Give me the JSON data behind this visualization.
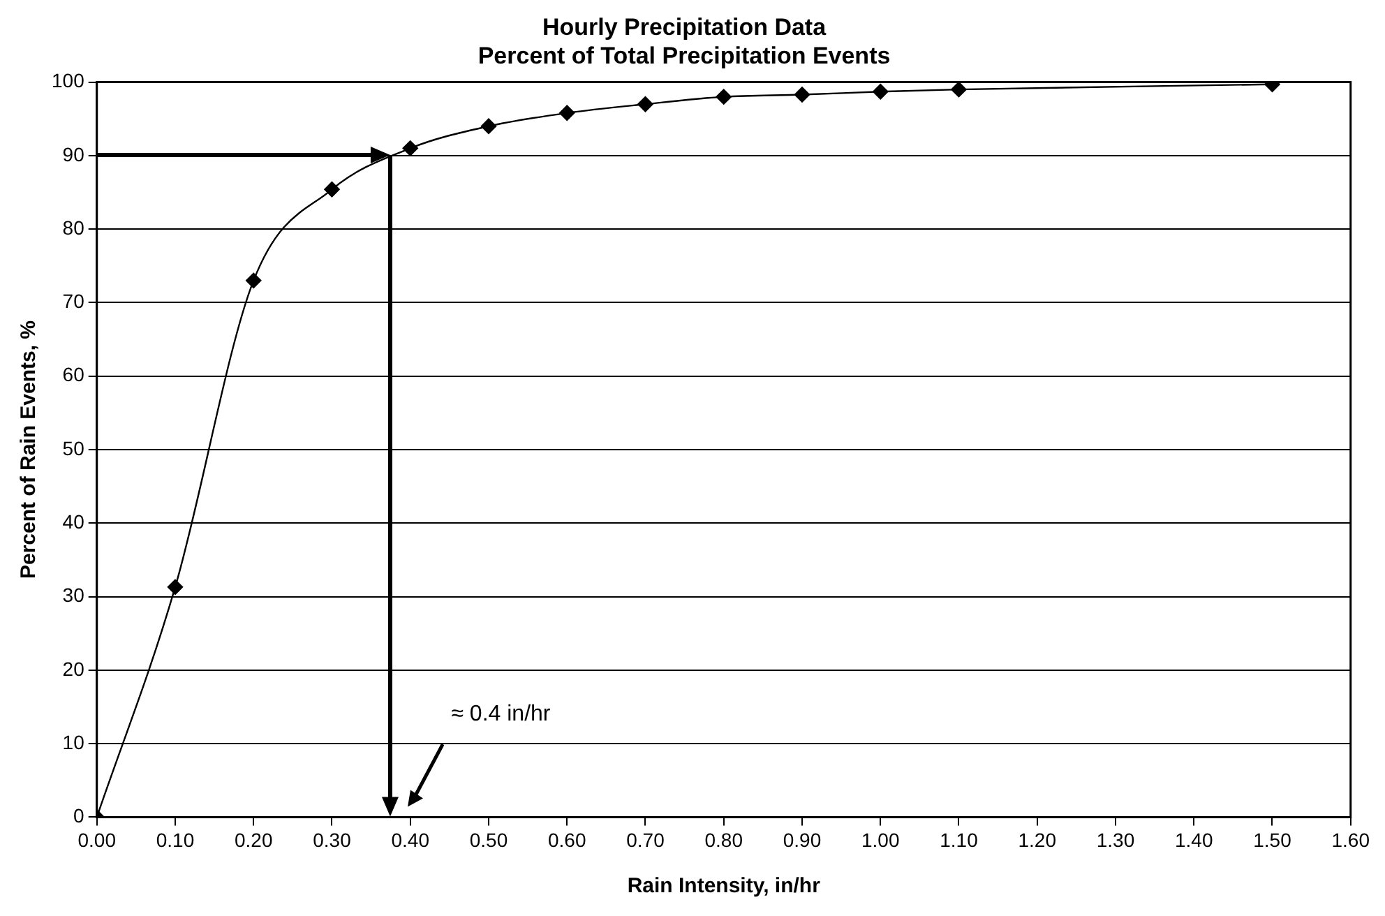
{
  "chart_data": {
    "type": "line",
    "title": "Hourly Precipitation Data",
    "subtitle": "Percent of Total Precipitation Events",
    "xlabel": "Rain Intensity, in/hr",
    "ylabel": "Percent of Rain Events, %",
    "series": [
      {
        "color": "#000000",
        "marker": "diamond",
        "x": [
          0,
          0.1,
          0.2,
          0.3,
          0.4,
          0.5,
          0.6,
          0.7,
          0.8,
          0.9,
          1.0,
          1.1,
          1.5
        ],
        "values": [
          0,
          31.3,
          73,
          85.4,
          91,
          94,
          95.8,
          97,
          98,
          98.3,
          98.7,
          99,
          99.7
        ]
      }
    ],
    "ref_lines": [
      {
        "axis": "y",
        "value": 90,
        "color": "#000000"
      },
      {
        "axis": "x",
        "value": 0.375,
        "color": "#000000"
      }
    ],
    "annotations": [
      "≈ 0.4 in/hr"
    ],
    "xlim": [
      0,
      1.6
    ],
    "ylim": [
      0,
      100
    ],
    "xticks": [
      {
        "value": 0,
        "label": "0.00"
      },
      {
        "value": 0.1,
        "label": "0.10"
      },
      {
        "value": 0.2,
        "label": "0.20"
      },
      {
        "value": 0.3,
        "label": "0.30"
      },
      {
        "value": 0.4,
        "label": "0.40"
      },
      {
        "value": 0.5,
        "label": "0.50"
      },
      {
        "value": 0.6,
        "label": "0.60"
      },
      {
        "value": 0.7,
        "label": "0.70"
      },
      {
        "value": 0.8,
        "label": "0.80"
      },
      {
        "value": 0.9,
        "label": "0.90"
      },
      {
        "value": 1.0,
        "label": "1.00"
      },
      {
        "value": 1.1,
        "label": "1.10"
      },
      {
        "value": 1.2,
        "label": "1.20"
      },
      {
        "value": 1.3,
        "label": "1.30"
      },
      {
        "value": 1.4,
        "label": "1.40"
      },
      {
        "value": 1.5,
        "label": "1.50"
      },
      {
        "value": 1.6,
        "label": "1.60"
      }
    ],
    "yticks": [
      0,
      10,
      20,
      30,
      40,
      50,
      60,
      70,
      80,
      90,
      100
    ],
    "grid": "y",
    "legend": false
  }
}
